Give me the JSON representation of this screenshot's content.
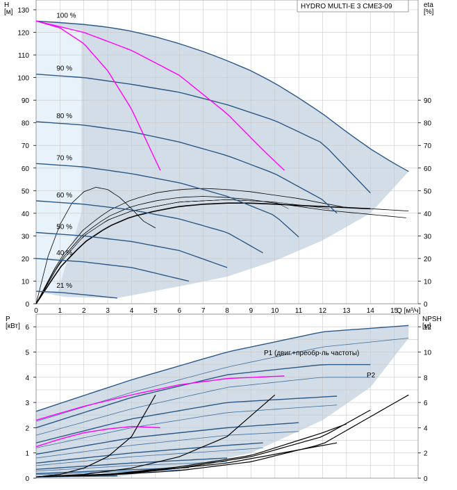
{
  "colors": {
    "operating_area": "#d2dde7",
    "low_flow_zone": "#e8f2fa",
    "speed_curve": "#2b5887",
    "power_curve": "#2b5887",
    "efficiency_curve": "#000000",
    "max_curve_highlight": "#ff00ff",
    "grid": "#c8c8c8"
  },
  "chart_data": [
    {
      "type": "line",
      "panel": "QH",
      "title": "HYDRO MULTI-E 3 CME3-09",
      "xlabel": "Q [м³/ч]",
      "ylabel": "H\n[м]",
      "y2label": "eta\n[%]",
      "xlim": [
        0,
        16
      ],
      "ylim": [
        0,
        130
      ],
      "y2lim": [
        0,
        90
      ],
      "xticks": [
        0,
        1,
        2,
        3,
        4,
        5,
        6,
        7,
        8,
        9,
        10,
        11,
        12,
        13,
        14,
        15
      ],
      "yticks": [
        0,
        10,
        20,
        30,
        40,
        50,
        60,
        70,
        80,
        90,
        100,
        110,
        120,
        130
      ],
      "y2ticks": [
        0,
        10,
        20,
        30,
        40,
        50,
        60,
        70,
        80,
        90
      ],
      "grid": true,
      "speed_series": [
        {
          "name": "100 %",
          "x": [
            0,
            1,
            2,
            3,
            4,
            5,
            6,
            7,
            8,
            9,
            10,
            11,
            12,
            13,
            14,
            15,
            15.6
          ],
          "y": [
            125,
            124.3,
            123.5,
            122.3,
            120.5,
            118,
            115,
            111.5,
            107.5,
            103,
            97.5,
            91,
            84,
            76,
            68.5,
            62,
            58.5
          ]
        },
        {
          "name": "90 %",
          "x": [
            0,
            2,
            4,
            6,
            8,
            10,
            12,
            14
          ],
          "y": [
            101.5,
            100,
            97,
            93.5,
            88,
            81,
            71,
            49
          ]
        },
        {
          "name": "80 %",
          "x": [
            0,
            2,
            4,
            6,
            8,
            10,
            12,
            12.6
          ],
          "y": [
            80.5,
            79,
            76,
            71.5,
            65.5,
            57.5,
            46,
            40
          ]
        },
        {
          "name": "70 %",
          "x": [
            0,
            2,
            4,
            6,
            8,
            10,
            11
          ],
          "y": [
            62,
            60.5,
            57.5,
            53.5,
            47.5,
            39,
            29.5
          ]
        },
        {
          "name": "60 %",
          "x": [
            0,
            2,
            4,
            6,
            8,
            9.5
          ],
          "y": [
            45.5,
            44,
            41.5,
            37.5,
            31.5,
            22.5
          ]
        },
        {
          "name": "50 %",
          "x": [
            0,
            2,
            4,
            6,
            8
          ],
          "y": [
            31.5,
            30,
            27.5,
            23.5,
            16
          ]
        },
        {
          "name": "40 %",
          "x": [
            0,
            2,
            4,
            6.4
          ],
          "y": [
            20,
            18.5,
            16,
            10
          ]
        },
        {
          "name": "21 %",
          "x": [
            0,
            1,
            2,
            3.4
          ],
          "y": [
            5.5,
            5,
            4,
            2.5
          ]
        }
      ],
      "max_curves": [
        {
          "x": [
            0,
            1,
            2,
            3,
            4,
            4.8,
            5.2
          ],
          "y": [
            125,
            122,
            115,
            103,
            86,
            68,
            59
          ]
        },
        {
          "x": [
            0,
            2,
            4,
            6,
            8,
            9.5,
            10.4
          ],
          "y": [
            125,
            120,
            112,
            101,
            84,
            68,
            59
          ]
        }
      ],
      "efficiency_series": [
        {
          "x": [
            0,
            0.5,
            1,
            1.5,
            2,
            2.5,
            3,
            3.5,
            4,
            4.5,
            5
          ],
          "y": [
            0,
            21,
            35,
            44.5,
            49.5,
            51.5,
            50.5,
            47,
            42,
            36.5,
            33.5
          ]
        },
        {
          "x": [
            0,
            1,
            2,
            3,
            4,
            5,
            6,
            7,
            8,
            9,
            10,
            11,
            12,
            13,
            14,
            15.5
          ],
          "y": [
            0,
            19,
            31,
            38.5,
            43,
            45.5,
            47,
            47.5,
            47,
            46,
            44.5,
            43,
            41.5,
            40.5,
            39.5,
            38
          ]
        },
        {
          "x": [
            0,
            1,
            2,
            3,
            4,
            5,
            6,
            7,
            8,
            9,
            10,
            11,
            12,
            13,
            14,
            15.6
          ],
          "y": [
            0,
            20,
            33,
            41,
            46,
            49,
            50.5,
            51,
            50.5,
            49.5,
            48,
            46.5,
            44.5,
            42.5,
            42,
            41
          ]
        },
        {
          "x": [
            0,
            1,
            2,
            3,
            4,
            5,
            6,
            7,
            8,
            9,
            10,
            11,
            12,
            13,
            14
          ],
          "y": [
            0,
            16,
            27,
            34,
            38.5,
            41,
            43,
            44,
            44.5,
            44.5,
            44,
            43.5,
            43,
            42.5,
            42
          ]
        }
      ],
      "labels": [
        "100 %",
        "90 %",
        "80 %",
        "70 %",
        "60 %",
        "50 %",
        "40 %",
        "21 %"
      ]
    },
    {
      "type": "line",
      "panel": "P-NPSH",
      "ylabel": "P\n[кВт]",
      "y2label": "NPSH\n[м]",
      "xlim": [
        0,
        16
      ],
      "ylim": [
        0,
        6.5
      ],
      "y2lim": [
        0,
        13
      ],
      "yticks": [
        0,
        1,
        2,
        3,
        4,
        5,
        6
      ],
      "y2ticks": [
        0,
        2,
        4,
        6,
        8,
        10,
        12
      ],
      "grid": true,
      "legend_labels": [
        "P1 (двиг.+преобр-ль частоты)",
        "P2"
      ],
      "p1_series": [
        {
          "x": [
            0,
            4,
            8,
            12,
            15.6
          ],
          "y": [
            2.65,
            3.9,
            5.0,
            5.8,
            6.05
          ]
        },
        {
          "x": [
            0,
            4,
            8,
            12,
            14
          ],
          "y": [
            2.0,
            3.2,
            4.1,
            4.5,
            4.5
          ]
        },
        {
          "x": [
            0,
            4,
            8,
            12.6
          ],
          "y": [
            1.4,
            2.35,
            3.0,
            3.25
          ]
        },
        {
          "x": [
            0,
            4,
            8,
            11
          ],
          "y": [
            0.95,
            1.6,
            2.0,
            2.2
          ]
        },
        {
          "x": [
            0,
            4,
            8,
            9.5
          ],
          "y": [
            0.6,
            1.0,
            1.3,
            1.4
          ]
        },
        {
          "x": [
            0,
            4,
            8
          ],
          "y": [
            0.35,
            0.6,
            0.8
          ]
        },
        {
          "x": [
            0,
            3,
            6.4
          ],
          "y": [
            0.18,
            0.3,
            0.42
          ]
        },
        {
          "x": [
            0,
            1.7,
            3.4
          ],
          "y": [
            0.05,
            0.08,
            0.1
          ]
        }
      ],
      "p2_series": [
        {
          "x": [
            0,
            4,
            8,
            12,
            15.6
          ],
          "y": [
            2.25,
            3.4,
            4.4,
            5.2,
            5.55
          ]
        },
        {
          "x": [
            0,
            4,
            8,
            12,
            14
          ],
          "y": [
            1.7,
            2.75,
            3.6,
            4.0,
            4.0
          ]
        },
        {
          "x": [
            0,
            4,
            8,
            12.6
          ],
          "y": [
            1.2,
            2.0,
            2.6,
            2.9
          ]
        },
        {
          "x": [
            0,
            4,
            8,
            11
          ],
          "y": [
            0.8,
            1.3,
            1.7,
            1.85
          ]
        },
        {
          "x": [
            0,
            4,
            8,
            9.5
          ],
          "y": [
            0.5,
            0.85,
            1.1,
            1.2
          ]
        },
        {
          "x": [
            0,
            4,
            8
          ],
          "y": [
            0.28,
            0.5,
            0.65
          ]
        },
        {
          "x": [
            0,
            3,
            6.4
          ],
          "y": [
            0.14,
            0.24,
            0.34
          ]
        },
        {
          "x": [
            0,
            1.7,
            3.4
          ],
          "y": [
            0.04,
            0.06,
            0.08
          ]
        }
      ],
      "max_power_curves": [
        {
          "x": [
            0,
            1,
            2,
            3,
            4,
            5.2
          ],
          "y": [
            1.25,
            1.55,
            1.8,
            1.95,
            2.05,
            2.0
          ]
        },
        {
          "x": [
            0,
            2,
            4,
            6,
            8,
            10.4
          ],
          "y": [
            2.3,
            2.85,
            3.3,
            3.7,
            3.95,
            4.05
          ]
        }
      ],
      "npsh_series": [
        {
          "x": [
            0,
            1,
            2,
            3,
            4,
            5
          ],
          "y": [
            0.1,
            0.3,
            0.8,
            1.7,
            3.3,
            6.6
          ]
        },
        {
          "x": [
            0,
            2,
            4,
            6,
            8,
            10
          ],
          "y": [
            0.1,
            0.3,
            0.8,
            1.7,
            3.3,
            6.6
          ]
        },
        {
          "x": [
            0,
            3,
            6,
            9,
            12,
            14
          ],
          "y": [
            0.1,
            0.3,
            0.8,
            1.7,
            3.3,
            5.4
          ]
        },
        {
          "x": [
            0,
            3,
            6,
            9,
            12,
            15.6
          ],
          "y": [
            0.1,
            0.25,
            0.6,
            1.3,
            2.7,
            6.6
          ]
        },
        {
          "x": [
            0,
            3,
            6,
            9,
            12,
            13
          ],
          "y": [
            0.1,
            0.3,
            0.9,
            1.8,
            3.6,
            4.3
          ]
        },
        {
          "x": [
            0,
            4,
            8,
            12.6
          ],
          "y": [
            0.1,
            0.4,
            1.2,
            2.8
          ]
        }
      ]
    }
  ]
}
